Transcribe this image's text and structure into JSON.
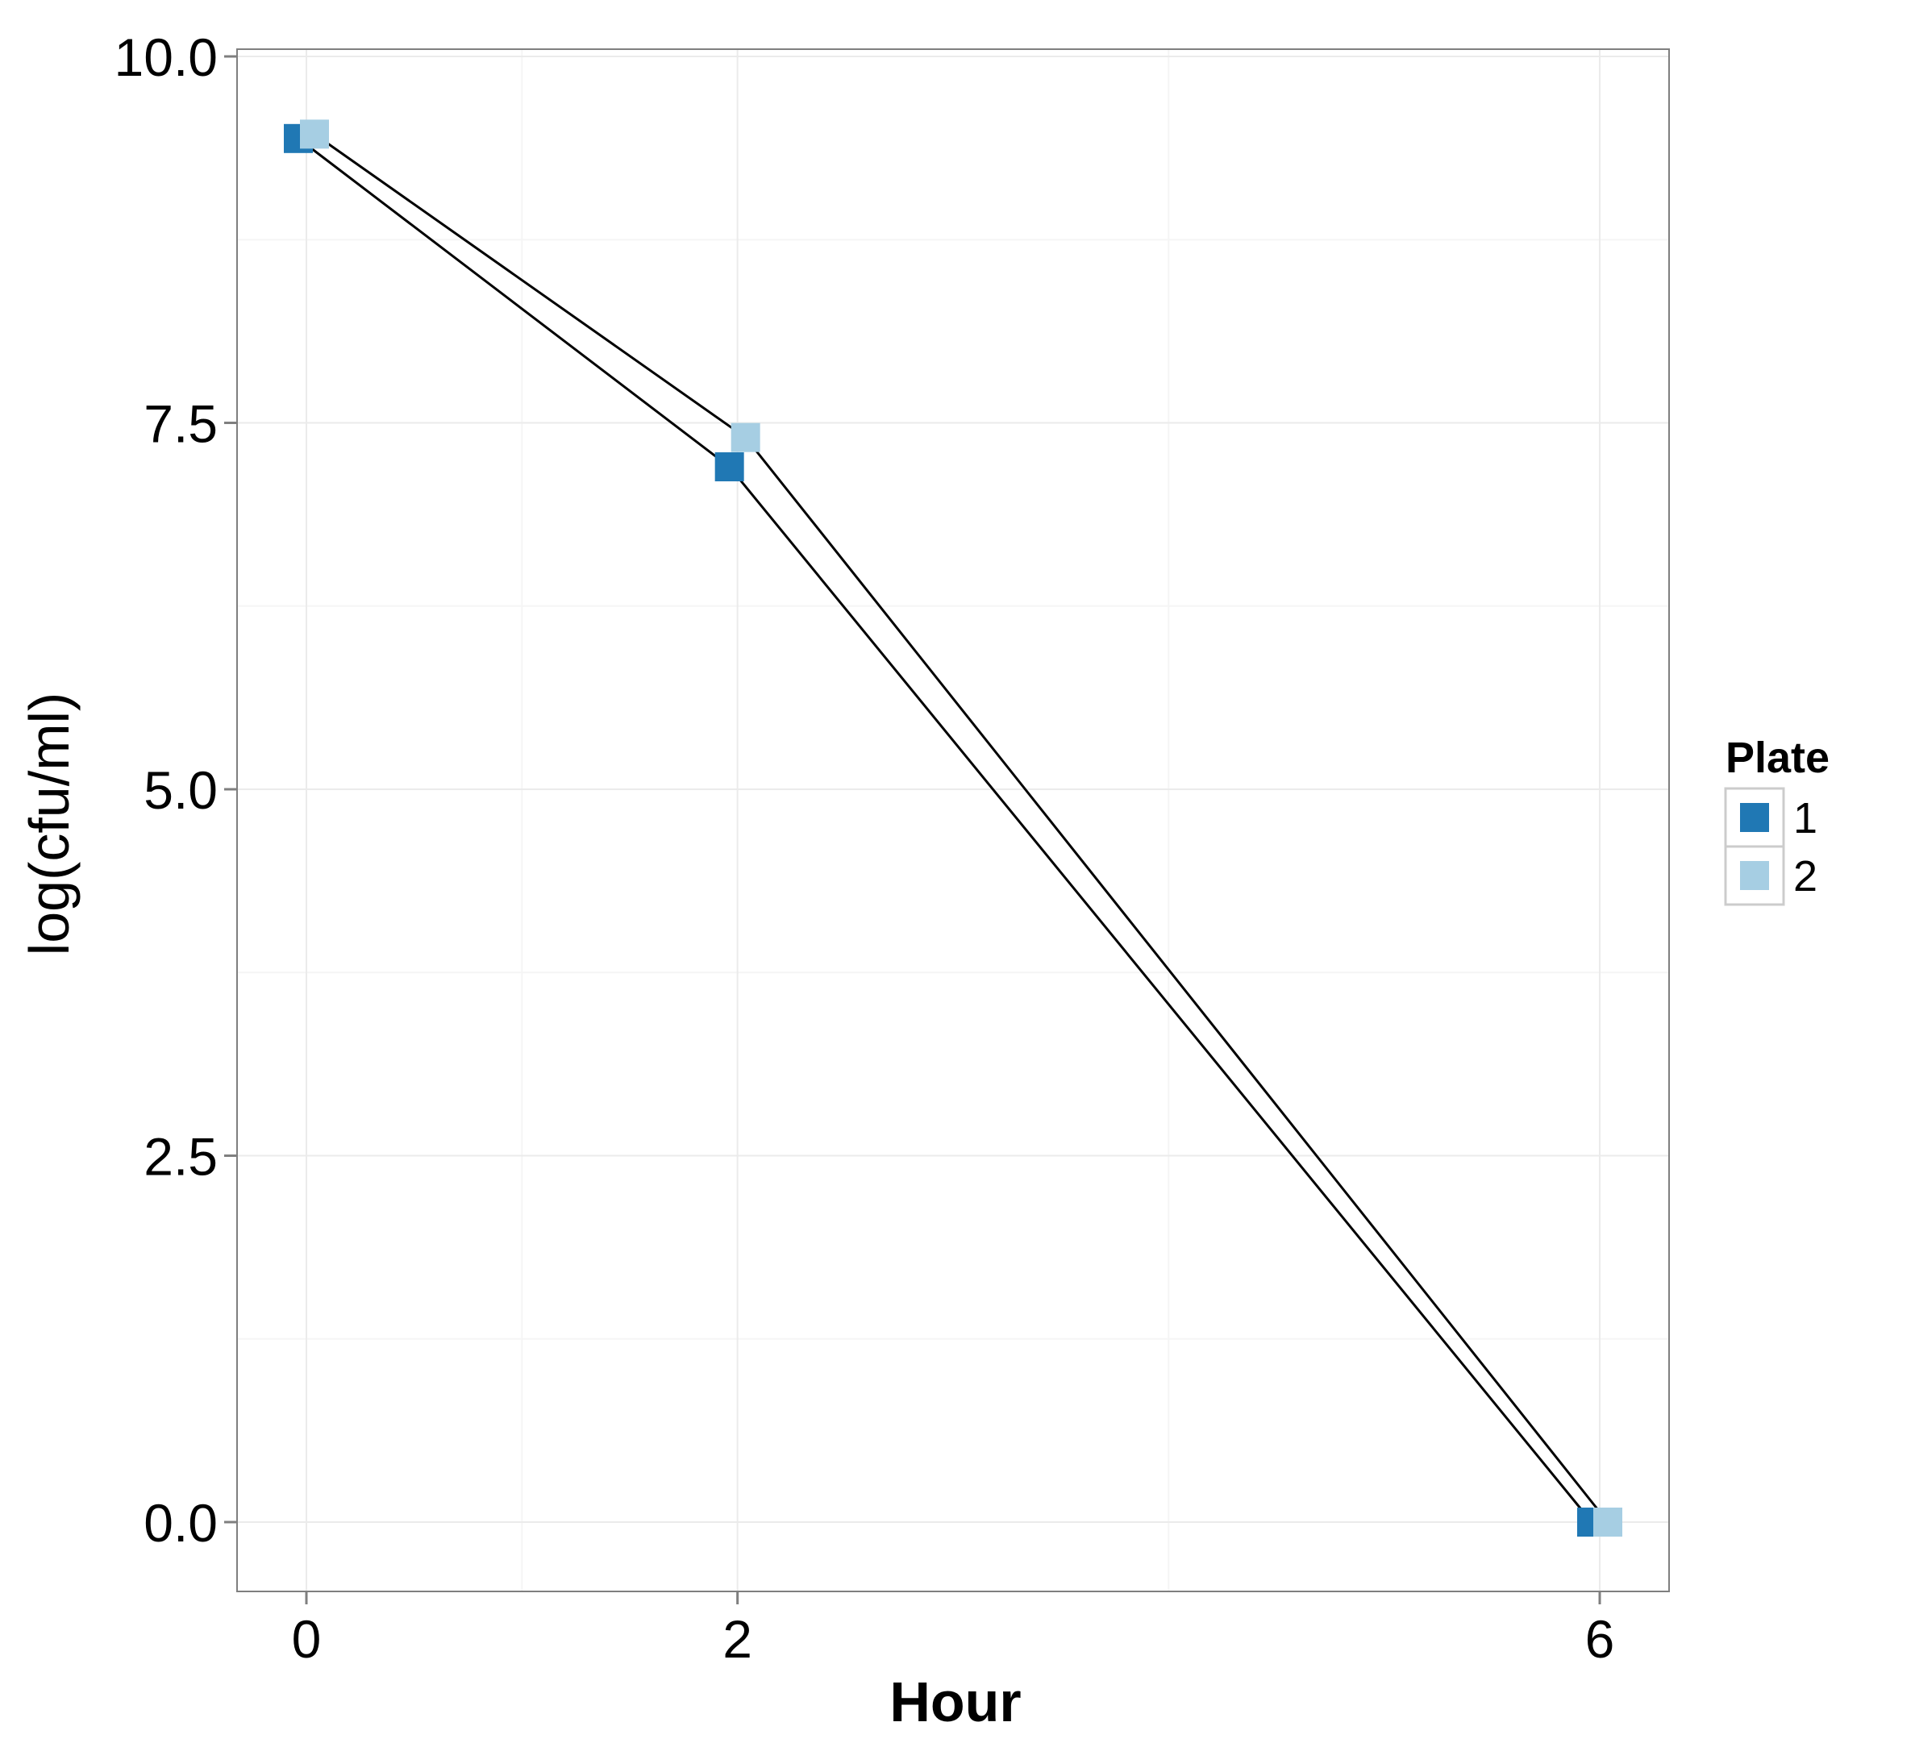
{
  "chart_data": {
    "type": "line",
    "title": "",
    "xlabel": "Hour",
    "ylabel": "log(cfu/ml)",
    "x_ticks": [
      "0",
      "2",
      "6"
    ],
    "y_ticks": [
      "0.0",
      "2.5",
      "5.0",
      "7.5",
      "10.0"
    ],
    "xlim": [
      -0.33,
      6.33
    ],
    "ylim": [
      -0.47,
      10.0
    ],
    "grid": true,
    "legend": {
      "title": "Plate",
      "position": "right"
    },
    "series": [
      {
        "name": "1",
        "color": "#2078B4",
        "x": [
          0,
          2,
          6
        ],
        "y": [
          9.44,
          7.2,
          0.0
        ]
      },
      {
        "name": "2",
        "color": "#A6CEE3",
        "x": [
          0,
          2,
          6
        ],
        "y": [
          9.47,
          7.4,
          0.0
        ]
      }
    ],
    "line_color": "#000000",
    "marker": "square"
  }
}
